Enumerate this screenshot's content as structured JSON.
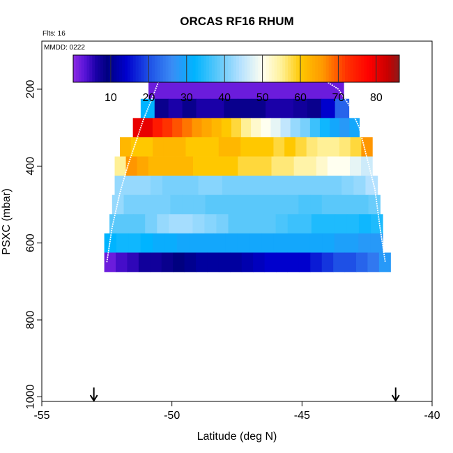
{
  "chart_data": {
    "type": "heatmap",
    "title": "ORCAS RF16 RHUM",
    "flights_label": "Flts: 16",
    "date_label": "MMDD: 0222",
    "xlabel": "Latitude (deg N)",
    "ylabel": "PSXC (mbar)",
    "xlim": [
      -55,
      -40
    ],
    "ylim": [
      1000,
      100
    ],
    "xticks": [
      -55,
      -50,
      -45,
      -40
    ],
    "yticks": [
      200,
      400,
      600,
      800,
      1000
    ],
    "colorbar": {
      "ticks": [
        10,
        20,
        30,
        40,
        50,
        60,
        70,
        80
      ],
      "range": [
        0,
        86
      ],
      "stops": [
        {
          "v": 0,
          "c": "#8c2be2"
        },
        {
          "v": 3,
          "c": "#5a14d9"
        },
        {
          "v": 6,
          "c": "#1a00a8"
        },
        {
          "v": 9,
          "c": "#000080"
        },
        {
          "v": 14,
          "c": "#0000cd"
        },
        {
          "v": 20,
          "c": "#1e50e6"
        },
        {
          "v": 26,
          "c": "#3a8cf5"
        },
        {
          "v": 32,
          "c": "#00b4ff"
        },
        {
          "v": 38,
          "c": "#5ac8fa"
        },
        {
          "v": 44,
          "c": "#b4e1ff"
        },
        {
          "v": 50,
          "c": "#fffff0"
        },
        {
          "v": 55,
          "c": "#fff096"
        },
        {
          "v": 60,
          "c": "#ffc800"
        },
        {
          "v": 66,
          "c": "#ff9600"
        },
        {
          "v": 72,
          "c": "#ff3200"
        },
        {
          "v": 78,
          "c": "#ff0000"
        },
        {
          "v": 83,
          "c": "#c80000"
        },
        {
          "v": 86,
          "c": "#8b1a1a"
        }
      ]
    },
    "layers": [
      {
        "ptop": 175,
        "pbot": 225,
        "lat_start": -50.9,
        "lat_end": -43.4,
        "values": [
          2,
          2
        ]
      },
      {
        "ptop": 225,
        "pbot": 275,
        "lat_start": -51.2,
        "lat_end": -43.2,
        "values": [
          32,
          8,
          6,
          8,
          6,
          6,
          8,
          8,
          8,
          6,
          6,
          7,
          8,
          14,
          22
        ]
      },
      {
        "ptop": 275,
        "pbot": 325,
        "lat_start": -51.5,
        "lat_end": -42.8,
        "values": [
          80,
          80,
          75,
          72,
          70,
          68,
          66,
          64,
          62,
          60,
          58,
          55,
          52,
          50,
          48,
          45,
          42,
          40,
          36,
          33,
          30,
          28,
          30
        ]
      },
      {
        "ptop": 325,
        "pbot": 375,
        "lat_start": -52.0,
        "lat_end": -42.3,
        "values": [
          62,
          60,
          60,
          62,
          62,
          62,
          60,
          60,
          60,
          62,
          62,
          60,
          60,
          60,
          58,
          60,
          58,
          56,
          55,
          55,
          56,
          58,
          66
        ]
      },
      {
        "ptop": 375,
        "pbot": 425,
        "lat_start": -52.2,
        "lat_end": -42.3,
        "values": [
          55,
          66,
          64,
          62,
          62,
          62,
          62,
          60,
          60,
          60,
          60,
          58,
          58,
          58,
          56,
          56,
          54,
          54,
          52,
          50,
          50,
          48,
          46
        ]
      },
      {
        "ptop": 425,
        "pbot": 475,
        "lat_start": -52.2,
        "lat_end": -42.1,
        "values": [
          42,
          42,
          42,
          41,
          40,
          40,
          40,
          41,
          41,
          40,
          40,
          40,
          40,
          40,
          40,
          40,
          40,
          40,
          40,
          41,
          42,
          44
        ]
      },
      {
        "ptop": 475,
        "pbot": 525,
        "lat_start": -52.3,
        "lat_end": -42.0,
        "values": [
          42,
          40,
          40,
          40,
          40,
          39,
          39,
          39,
          38,
          38,
          38,
          38,
          38,
          38,
          38,
          38,
          37,
          37,
          38,
          38,
          38,
          38,
          39
        ]
      },
      {
        "ptop": 525,
        "pbot": 575,
        "lat_start": -52.4,
        "lat_end": -41.9,
        "values": [
          38,
          38,
          38,
          40,
          42,
          43,
          43,
          42,
          41,
          40,
          38,
          38,
          38,
          38,
          37,
          36,
          36,
          34,
          34,
          34,
          34,
          33,
          34
        ]
      },
      {
        "ptop": 575,
        "pbot": 625,
        "lat_start": -52.6,
        "lat_end": -41.9,
        "values": [
          32,
          33,
          33,
          32,
          31,
          31,
          30,
          30,
          30,
          30,
          30,
          30,
          30,
          30,
          30,
          30,
          30,
          30,
          30,
          29,
          29,
          28,
          28
        ]
      },
      {
        "ptop": 625,
        "pbot": 675,
        "lat_start": -52.6,
        "lat_end": -41.6,
        "values": [
          2,
          4,
          5,
          7,
          7,
          8,
          9,
          10,
          11,
          11,
          11,
          11,
          12,
          13,
          14,
          14,
          14,
          14,
          16,
          18,
          20,
          20,
          22,
          24,
          28
        ]
      }
    ],
    "flight_track": [
      [
        -52.5,
        650
      ],
      [
        -52.3,
        560
      ],
      [
        -52.0,
        470
      ],
      [
        -51.7,
        400
      ],
      [
        -51.4,
        340
      ],
      [
        -51.1,
        280
      ],
      [
        -50.8,
        230
      ],
      [
        -50.5,
        178
      ],
      [
        -44.1,
        178
      ],
      [
        -43.6,
        200
      ],
      [
        -43.2,
        240
      ],
      [
        -42.8,
        300
      ],
      [
        -42.5,
        380
      ],
      [
        -42.2,
        460
      ],
      [
        -42.0,
        560
      ],
      [
        -41.8,
        650
      ]
    ],
    "markers": [
      {
        "lat": -53.0,
        "symbol": "arrow-down"
      },
      {
        "lat": -41.4,
        "symbol": "arrow-down"
      }
    ]
  }
}
